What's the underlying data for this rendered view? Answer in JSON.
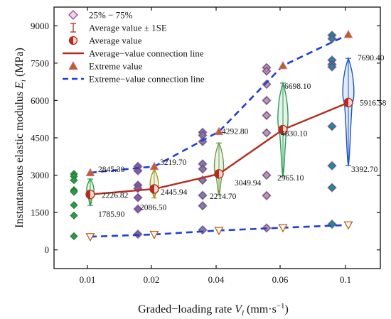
{
  "chart_data": {
    "type": "scatter",
    "xlabel": "Graded−loading rate",
    "xlabel_symbol": "V",
    "xlabel_sub": "l",
    "xlabel_unit": " (mm·s",
    "xlabel_unit_sup": "−1",
    "xlabel_unit_end": ")",
    "ylabel": "Instantaneous elastic modulus",
    "ylabel_symbol": "E",
    "ylabel_sub": "i",
    "ylabel_unit": " (MPa)",
    "categories": [
      "0.01",
      "0.02",
      "0.04",
      "0.06",
      "0.1"
    ],
    "ylim": [
      -750,
      9750
    ],
    "yticks": [
      "0",
      "1500",
      "3000",
      "4500",
      "6000",
      "7500",
      "9000"
    ],
    "ytick_values": [
      0,
      1500,
      3000,
      4500,
      6000,
      7500,
      9000
    ],
    "legend": {
      "position": "top-left",
      "items": [
        {
          "label": "25% − 75%",
          "symbol": "diamond"
        },
        {
          "label": "Average value ± 1SE",
          "symbol": "errorbar"
        },
        {
          "label": "Average value",
          "symbol": "half-circle"
        },
        {
          "label": "Average−value connection line",
          "symbol": "solid-line"
        },
        {
          "label": "Extreme value",
          "symbol": "triangle"
        },
        {
          "label": "Extreme−value connection line",
          "symbol": "dashed-line"
        }
      ]
    },
    "series": [
      {
        "name": "Average value",
        "values": [
          2226.82,
          2445.94,
          3049.94,
          4830.1,
          5916.58
        ]
      },
      {
        "name": "Extreme value",
        "upper": [
          3100,
          3350,
          4750,
          7400,
          8650
        ],
        "lower": [
          530,
          620,
          780,
          890,
          1000
        ]
      }
    ],
    "raw_points": [
      [
        3050,
        2950,
        2800,
        2400,
        2330,
        1800,
        1380,
        550
      ],
      [
        3350,
        3180,
        2600,
        2470,
        2100,
        1640,
        630
      ],
      [
        4720,
        4600,
        4350,
        3450,
        3250,
        2800,
        2190,
        1770,
        800
      ],
      [
        7320,
        7180,
        6650,
        6000,
        5400,
        4700,
        3000,
        2180,
        880
      ],
      [
        8620,
        8480,
        7620,
        7450,
        7350,
        4960,
        3380,
        2500,
        1030
      ]
    ],
    "distributions": [
      {
        "max": 2845.3,
        "min": 1785.9
      },
      {
        "max": 3219.7,
        "min": 2086.5
      },
      {
        "max": 4292.8,
        "min": 2214.7
      },
      {
        "max": 6698.1,
        "min": 2965.1
      },
      {
        "max": 7690.4,
        "min": 3392.7
      }
    ],
    "annotations": [
      {
        "text": "2845.30",
        "x_index": 0,
        "y": 2845.3
      },
      {
        "text": "2226.82",
        "x_index": 0,
        "y": 2226.82
      },
      {
        "text": "1785.90",
        "x_index": 0,
        "y": 1785.9
      },
      {
        "text": "3219.70",
        "x_index": 1,
        "y": 3219.7
      },
      {
        "text": "2445.94",
        "x_index": 1,
        "y": 2445.94
      },
      {
        "text": "2086.50",
        "x_index": 1,
        "y": 2086.5
      },
      {
        "text": "4292.80",
        "x_index": 2,
        "y": 4292.8
      },
      {
        "text": "3049.94",
        "x_index": 2,
        "y": 3049.94
      },
      {
        "text": "2214.70",
        "x_index": 2,
        "y": 2214.7
      },
      {
        "text": "6698.10",
        "x_index": 3,
        "y": 6698.1
      },
      {
        "text": "4830.10",
        "x_index": 3,
        "y": 4830.1
      },
      {
        "text": "2965.10",
        "x_index": 3,
        "y": 2965.1
      },
      {
        "text": "7690.40",
        "x_index": 4,
        "y": 7690.4
      },
      {
        "text": "5916.58",
        "x_index": 4,
        "y": 5916.58
      },
      {
        "text": "3392.70",
        "x_index": 4,
        "y": 3392.7
      }
    ],
    "colors": {
      "average_line": "#b32d1f",
      "extreme_line": "#1f3fd0",
      "diamond_edge": "#8b4f9a",
      "diamond_fill": "#f3d5e6",
      "triangle": "#b5651d",
      "group_colors": [
        "#2e9a45",
        "#9a9a22",
        "#6e9a4a",
        "#2e9a57",
        "#1a55c8"
      ],
      "raw_point_fill": [
        "#2e9a45",
        "#8b5aa8",
        "#8b7aa8",
        "#c58fb8",
        "#1f8aa0"
      ]
    }
  }
}
